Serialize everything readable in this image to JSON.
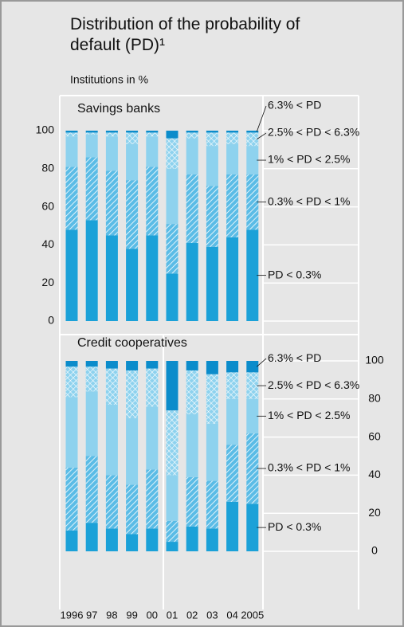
{
  "title": "Distribution of the probability of default (PD)¹",
  "unit_label": "Institutions in %",
  "chart_data": [
    {
      "type": "stacked_bar",
      "title": "Savings banks",
      "ylim": [
        0,
        100
      ],
      "yticks": [
        0,
        20,
        40,
        60,
        80,
        100
      ],
      "y_axis_side": "left",
      "grid": true,
      "series": [
        {
          "name": "PD < 0.3%",
          "color": "#1ba1d8",
          "hatch": "none",
          "values": [
            48,
            53,
            45,
            38,
            45,
            25,
            41,
            39,
            44,
            48
          ]
        },
        {
          "name": "0.3% < PD < 1%",
          "color": "#5bbce6",
          "hatch": "diagonal",
          "values": [
            33,
            33,
            34,
            36,
            36,
            26,
            36,
            32,
            33,
            29
          ]
        },
        {
          "name": "1% < PD < 2.5%",
          "color": "#8ed2ee",
          "hatch": "none",
          "values": [
            16,
            12,
            18,
            19,
            16,
            29,
            19,
            21,
            16,
            15
          ]
        },
        {
          "name": "2.5% < PD < 6.3%",
          "color": "#8ed2ee",
          "hatch": "cross",
          "values": [
            2,
            1,
            2,
            6,
            2,
            16,
            3,
            7,
            6,
            7
          ]
        },
        {
          "name": "6.3% < PD",
          "color": "#0b8ccb",
          "hatch": "none",
          "values": [
            1,
            1,
            1,
            1,
            1,
            4,
            1,
            1,
            1,
            1
          ]
        }
      ]
    },
    {
      "type": "stacked_bar",
      "title": "Credit cooperatives",
      "categories": [
        "1996",
        "97",
        "98",
        "99",
        "00",
        "01",
        "02",
        "03",
        "04",
        "2005"
      ],
      "ylim": [
        0,
        100
      ],
      "yticks": [
        0,
        20,
        40,
        60,
        80,
        100
      ],
      "y_axis_side": "right",
      "grid": true,
      "series": [
        {
          "name": "PD < 0.3%",
          "color": "#1ba1d8",
          "hatch": "none",
          "values": [
            11,
            15,
            12,
            9,
            12,
            5,
            13,
            12,
            26,
            25
          ]
        },
        {
          "name": "0.3% < PD < 1%",
          "color": "#5bbce6",
          "hatch": "diagonal",
          "values": [
            33,
            35,
            28,
            26,
            31,
            11,
            26,
            25,
            30,
            37
          ]
        },
        {
          "name": "1% < PD < 2.5%",
          "color": "#8ed2ee",
          "hatch": "none",
          "values": [
            37,
            34,
            37,
            35,
            33,
            24,
            33,
            30,
            24,
            18
          ]
        },
        {
          "name": "2.5% < PD < 6.3%",
          "color": "#8ed2ee",
          "hatch": "cross",
          "values": [
            16,
            13,
            19,
            25,
            20,
            34,
            23,
            26,
            14,
            14
          ]
        },
        {
          "name": "6.3% < PD",
          "color": "#0b8ccb",
          "hatch": "none",
          "values": [
            3,
            3,
            4,
            5,
            4,
            26,
            5,
            7,
            6,
            6
          ]
        }
      ]
    }
  ]
}
